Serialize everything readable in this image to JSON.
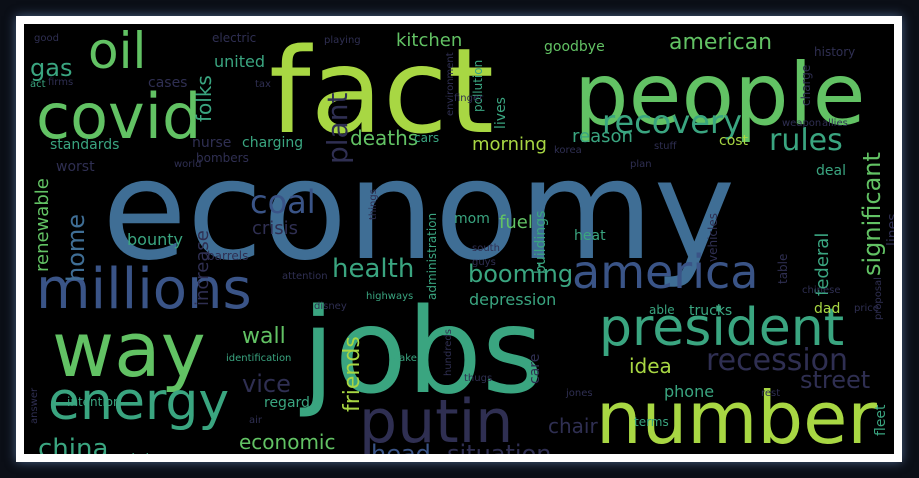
{
  "wordcloud": {
    "colors": {
      "background": "#000000",
      "frame": "#0b0f17",
      "lime": "#a8d743",
      "green": "#62c264",
      "teal": "#3aa580",
      "blue": "#3f6e95",
      "darkblue": "#3a5487",
      "purple": "#45367f",
      "dark": "#2f2f52"
    },
    "words": [
      {
        "text": "economy"
      },
      {
        "text": "fact"
      },
      {
        "text": "jobs"
      },
      {
        "text": "people"
      },
      {
        "text": "covid"
      },
      {
        "text": "way"
      },
      {
        "text": "number"
      },
      {
        "text": "millions"
      },
      {
        "text": "president"
      },
      {
        "text": "putin"
      },
      {
        "text": "energy"
      },
      {
        "text": "oil"
      },
      {
        "text": "america"
      },
      {
        "text": "recovery"
      },
      {
        "text": "recession"
      },
      {
        "text": "rules"
      },
      {
        "text": "booming"
      },
      {
        "text": "coal"
      },
      {
        "text": "health"
      },
      {
        "text": "china"
      },
      {
        "text": "economic"
      },
      {
        "text": "head"
      },
      {
        "text": "situation"
      },
      {
        "text": "significant"
      },
      {
        "text": "american"
      },
      {
        "text": "kitchen"
      },
      {
        "text": "gas"
      },
      {
        "text": "folks"
      },
      {
        "text": "plant"
      },
      {
        "text": "deaths"
      },
      {
        "text": "morning"
      },
      {
        "text": "reason"
      },
      {
        "text": "home"
      },
      {
        "text": "renewable"
      },
      {
        "text": "wall"
      },
      {
        "text": "vice"
      },
      {
        "text": "friends"
      },
      {
        "text": "idea"
      },
      {
        "text": "street"
      },
      {
        "text": "chair"
      },
      {
        "text": "united"
      },
      {
        "text": "goodbye"
      },
      {
        "text": "cost"
      },
      {
        "text": "standards"
      },
      {
        "text": "charging"
      },
      {
        "text": "nurse"
      },
      {
        "text": "crisis"
      },
      {
        "text": "increase"
      },
      {
        "text": "fuel"
      },
      {
        "text": "bounty"
      },
      {
        "text": "depression"
      },
      {
        "text": "phone"
      },
      {
        "text": "regard"
      },
      {
        "text": "intention"
      },
      {
        "text": "states"
      },
      {
        "text": "future"
      },
      {
        "text": "incentives"
      },
      {
        "text": "stations"
      },
      {
        "text": "nuclear"
      },
      {
        "text": "hurricanes"
      },
      {
        "text": "fleet"
      },
      {
        "text": "federal"
      },
      {
        "text": "lines"
      },
      {
        "text": "dad"
      },
      {
        "text": "deal"
      },
      {
        "text": "trucks"
      },
      {
        "text": "care"
      },
      {
        "text": "terms"
      },
      {
        "text": "administration"
      },
      {
        "text": "buildings"
      },
      {
        "text": "heat"
      },
      {
        "text": "lives"
      },
      {
        "text": "pollution"
      },
      {
        "text": "cars"
      },
      {
        "text": "mom"
      },
      {
        "text": "worst"
      },
      {
        "text": "bombers"
      },
      {
        "text": "barrels"
      },
      {
        "text": "electric"
      },
      {
        "text": "good"
      },
      {
        "text": "act"
      },
      {
        "text": "tax"
      },
      {
        "text": "charge"
      },
      {
        "text": "history"
      },
      {
        "text": "stuff"
      },
      {
        "text": "plan"
      },
      {
        "text": "south"
      },
      {
        "text": "guys"
      },
      {
        "text": "vehicles"
      },
      {
        "text": "table"
      },
      {
        "text": "highways"
      },
      {
        "text": "able"
      },
      {
        "text": "identification"
      },
      {
        "text": "stake"
      },
      {
        "text": "thugs"
      },
      {
        "text": "air"
      },
      {
        "text": "answer"
      },
      {
        "text": "finger"
      },
      {
        "text": "things"
      },
      {
        "text": "weapon"
      },
      {
        "text": "allies"
      },
      {
        "text": "chinese"
      },
      {
        "text": "price"
      },
      {
        "text": "korea"
      },
      {
        "text": "world"
      },
      {
        "text": "playing"
      },
      {
        "text": "cases"
      },
      {
        "text": "firms"
      },
      {
        "text": "environment"
      },
      {
        "text": "proposal"
      },
      {
        "text": "jones"
      },
      {
        "text": "rest"
      },
      {
        "text": "hundreds"
      },
      {
        "text": "attention"
      },
      {
        "text": "disney"
      }
    ]
  }
}
